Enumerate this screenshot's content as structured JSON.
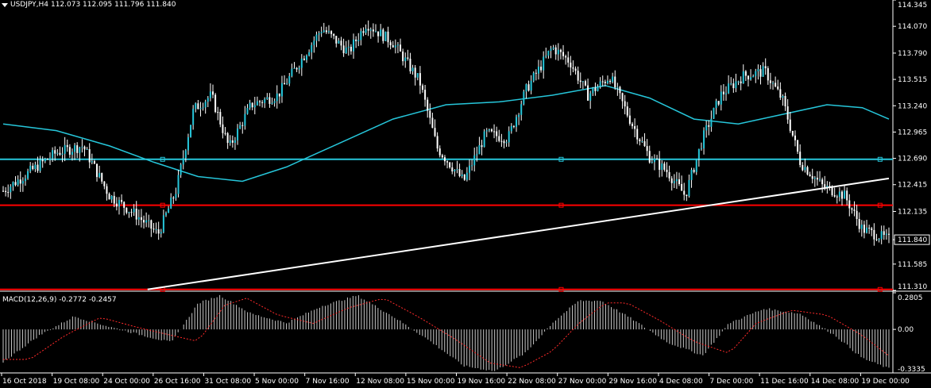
{
  "header": {
    "symbol": "USDJPY,H4",
    "ohlc": "112.073 112.095 111.796 111.840",
    "macd_label": "MACD(12,26,9) -0.2772 -0.2457"
  },
  "colors": {
    "background": "#000000",
    "bull_candle": "#ffffff",
    "bear_candle": "#ffffff",
    "bull_body": "#26c6da",
    "ma_line": "#26c6da",
    "support_line": "#26c6da",
    "red_line": "#ff0000",
    "trend_line": "#ffffff",
    "macd_hist": "#c8c8c8",
    "macd_signal": "#ff2a2a"
  },
  "chart_data": [
    {
      "type": "candlestick",
      "name": "price",
      "ylim": [
        111.31,
        114.345
      ],
      "y_ticks": [
        "114.345",
        "114.070",
        "113.790",
        "113.515",
        "113.240",
        "112.965",
        "112.690",
        "112.415",
        "112.135",
        "111.840",
        "111.585",
        "111.310"
      ],
      "current_price": "111.840",
      "x_ticks": [
        "16 Oct 2018",
        "19 Oct 08:00",
        "24 Oct 00:00",
        "26 Oct 16:00",
        "31 Oct 08:00",
        "5 Nov 00:00",
        "7 Nov 16:00",
        "12 Nov 08:00",
        "15 Nov 00:00",
        "19 Nov 16:00",
        "22 Nov 08:00",
        "27 Nov 00:00",
        "29 Nov 16:00",
        "4 Dec 08:00",
        "7 Dec 00:00",
        "11 Dec 16:00",
        "14 Dec 08:00",
        "19 Dec 00:00"
      ],
      "key_points": [
        {
          "t": 0.0,
          "p": 112.35
        },
        {
          "t": 0.03,
          "p": 112.55
        },
        {
          "t": 0.06,
          "p": 112.75
        },
        {
          "t": 0.09,
          "p": 112.82
        },
        {
          "t": 0.12,
          "p": 112.3
        },
        {
          "t": 0.15,
          "p": 112.1
        },
        {
          "t": 0.175,
          "p": 111.9
        },
        {
          "t": 0.195,
          "p": 112.35
        },
        {
          "t": 0.215,
          "p": 113.2
        },
        {
          "t": 0.235,
          "p": 113.35
        },
        {
          "t": 0.255,
          "p": 112.8
        },
        {
          "t": 0.28,
          "p": 113.25
        },
        {
          "t": 0.31,
          "p": 113.35
        },
        {
          "t": 0.335,
          "p": 113.7
        },
        {
          "t": 0.36,
          "p": 114.05
        },
        {
          "t": 0.39,
          "p": 113.8
        },
        {
          "t": 0.41,
          "p": 114.1
        },
        {
          "t": 0.44,
          "p": 113.9
        },
        {
          "t": 0.47,
          "p": 113.5
        },
        {
          "t": 0.49,
          "p": 112.8
        },
        {
          "t": 0.52,
          "p": 112.45
        },
        {
          "t": 0.545,
          "p": 112.95
        },
        {
          "t": 0.57,
          "p": 112.9
        },
        {
          "t": 0.59,
          "p": 113.4
        },
        {
          "t": 0.62,
          "p": 113.85
        },
        {
          "t": 0.64,
          "p": 113.7
        },
        {
          "t": 0.66,
          "p": 113.35
        },
        {
          "t": 0.685,
          "p": 113.55
        },
        {
          "t": 0.71,
          "p": 113.05
        },
        {
          "t": 0.73,
          "p": 112.7
        },
        {
          "t": 0.75,
          "p": 112.55
        },
        {
          "t": 0.77,
          "p": 112.3
        },
        {
          "t": 0.79,
          "p": 112.9
        },
        {
          "t": 0.81,
          "p": 113.35
        },
        {
          "t": 0.835,
          "p": 113.55
        },
        {
          "t": 0.86,
          "p": 113.6
        },
        {
          "t": 0.88,
          "p": 113.3
        },
        {
          "t": 0.9,
          "p": 112.65
        },
        {
          "t": 0.925,
          "p": 112.4
        },
        {
          "t": 0.95,
          "p": 112.3
        },
        {
          "t": 0.97,
          "p": 111.95
        },
        {
          "t": 1.0,
          "p": 111.84
        }
      ],
      "moving_average": [
        {
          "t": 0.0,
          "p": 113.05
        },
        {
          "t": 0.06,
          "p": 112.98
        },
        {
          "t": 0.12,
          "p": 112.82
        },
        {
          "t": 0.17,
          "p": 112.65
        },
        {
          "t": 0.22,
          "p": 112.5
        },
        {
          "t": 0.27,
          "p": 112.45
        },
        {
          "t": 0.32,
          "p": 112.6
        },
        {
          "t": 0.38,
          "p": 112.85
        },
        {
          "t": 0.44,
          "p": 113.1
        },
        {
          "t": 0.5,
          "p": 113.25
        },
        {
          "t": 0.56,
          "p": 113.28
        },
        {
          "t": 0.62,
          "p": 113.35
        },
        {
          "t": 0.68,
          "p": 113.45
        },
        {
          "t": 0.73,
          "p": 113.32
        },
        {
          "t": 0.78,
          "p": 113.1
        },
        {
          "t": 0.83,
          "p": 113.05
        },
        {
          "t": 0.88,
          "p": 113.15
        },
        {
          "t": 0.93,
          "p": 113.25
        },
        {
          "t": 0.97,
          "p": 113.22
        },
        {
          "t": 1.0,
          "p": 113.1
        }
      ],
      "horizontal_levels": [
        {
          "price": 112.68,
          "color": "#26c6da"
        },
        {
          "price": 112.2,
          "color": "#ff0000"
        },
        {
          "price": 111.32,
          "color": "#ff0000"
        }
      ],
      "trend_line": {
        "from": {
          "t": 0.163,
          "p": 111.32
        },
        "to": {
          "t": 1.0,
          "p": 112.48
        }
      }
    },
    {
      "type": "macd",
      "name": "MACD(12,26,9)",
      "ylim": [
        -0.3335,
        0.2805
      ],
      "y_ticks": [
        "0.2805",
        "0.00",
        "-0.3335"
      ],
      "key_points": [
        {
          "t": 0.0,
          "v": -0.25
        },
        {
          "t": 0.04,
          "v": -0.05
        },
        {
          "t": 0.08,
          "v": 0.1
        },
        {
          "t": 0.12,
          "v": 0.02
        },
        {
          "t": 0.16,
          "v": -0.05
        },
        {
          "t": 0.19,
          "v": -0.1
        },
        {
          "t": 0.22,
          "v": 0.2
        },
        {
          "t": 0.245,
          "v": 0.26
        },
        {
          "t": 0.28,
          "v": 0.12
        },
        {
          "t": 0.32,
          "v": 0.05
        },
        {
          "t": 0.36,
          "v": 0.18
        },
        {
          "t": 0.4,
          "v": 0.26
        },
        {
          "t": 0.44,
          "v": 0.1
        },
        {
          "t": 0.48,
          "v": -0.08
        },
        {
          "t": 0.52,
          "v": -0.28
        },
        {
          "t": 0.555,
          "v": -0.32
        },
        {
          "t": 0.59,
          "v": -0.18
        },
        {
          "t": 0.62,
          "v": 0.05
        },
        {
          "t": 0.65,
          "v": 0.22
        },
        {
          "t": 0.675,
          "v": 0.22
        },
        {
          "t": 0.71,
          "v": 0.08
        },
        {
          "t": 0.75,
          "v": -0.1
        },
        {
          "t": 0.79,
          "v": -0.2
        },
        {
          "t": 0.82,
          "v": 0.05
        },
        {
          "t": 0.86,
          "v": 0.16
        },
        {
          "t": 0.9,
          "v": 0.12
        },
        {
          "t": 0.94,
          "v": -0.05
        },
        {
          "t": 0.97,
          "v": -0.22
        },
        {
          "t": 1.0,
          "v": -0.3
        }
      ]
    }
  ]
}
